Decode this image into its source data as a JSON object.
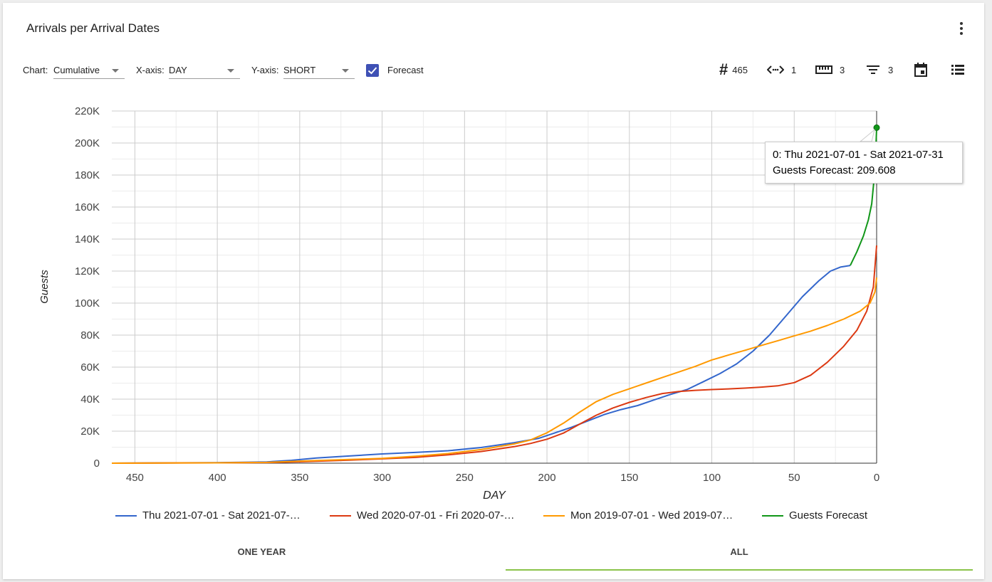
{
  "card": {
    "title": "Arrivals per Arrival Dates"
  },
  "controls": {
    "chart_label": "Chart:",
    "chart_value": "Cumulative",
    "xaxis_label": "X-axis:",
    "xaxis_value": "DAY",
    "yaxis_label": "Y-axis:",
    "yaxis_value": "SHORT",
    "forecast_label": "Forecast",
    "forecast_checked": true
  },
  "toolbar": {
    "count_value": "465",
    "range_value": "1",
    "ruler_value": "3",
    "filter_value": "3"
  },
  "tooltip": {
    "line1": "0: Thu 2021-07-01 - Sat 2021-07-31",
    "line2": "Guests Forecast: 209.608"
  },
  "tabs": [
    {
      "label": "ONE YEAR",
      "active": false
    },
    {
      "label": "ALL",
      "active": true
    }
  ],
  "chart_data": {
    "type": "line",
    "title": "",
    "xlabel": "DAY",
    "ylabel": "Guests",
    "xlim": [
      464,
      0
    ],
    "xreversed": true,
    "ylim": [
      0,
      220000
    ],
    "xticks": [
      450,
      400,
      350,
      300,
      250,
      200,
      150,
      100,
      50,
      0
    ],
    "yticks": [
      0,
      20000,
      40000,
      60000,
      80000,
      100000,
      120000,
      140000,
      160000,
      180000,
      200000,
      220000
    ],
    "ytick_labels": [
      "0",
      "20K",
      "40K",
      "60K",
      "80K",
      "100K",
      "120K",
      "140K",
      "160K",
      "180K",
      "200K",
      "220K"
    ],
    "grid": true,
    "legend_position": "bottom",
    "series": [
      {
        "name": "Thu 2021-07-01 - Sat 2021-07-…",
        "color": "#3366cc",
        "points": [
          [
            464,
            0
          ],
          [
            400,
            300
          ],
          [
            370,
            800
          ],
          [
            355,
            1800
          ],
          [
            340,
            3200
          ],
          [
            320,
            4500
          ],
          [
            300,
            5800
          ],
          [
            280,
            6700
          ],
          [
            260,
            7800
          ],
          [
            240,
            9800
          ],
          [
            220,
            12800
          ],
          [
            205,
            15500
          ],
          [
            195,
            19000
          ],
          [
            185,
            22500
          ],
          [
            175,
            26500
          ],
          [
            165,
            30500
          ],
          [
            155,
            33500
          ],
          [
            145,
            36000
          ],
          [
            135,
            39500
          ],
          [
            125,
            43000
          ],
          [
            115,
            46000
          ],
          [
            105,
            51000
          ],
          [
            95,
            56000
          ],
          [
            85,
            62000
          ],
          [
            75,
            70000
          ],
          [
            65,
            80000
          ],
          [
            55,
            92000
          ],
          [
            45,
            104000
          ],
          [
            35,
            114000
          ],
          [
            28,
            120000
          ],
          [
            22,
            122500
          ],
          [
            16,
            123500
          ]
        ]
      },
      {
        "name": "Wed 2020-07-01 - Fri 2020-07-…",
        "color": "#dc3912",
        "points": [
          [
            464,
            0
          ],
          [
            400,
            200
          ],
          [
            370,
            400
          ],
          [
            350,
            900
          ],
          [
            320,
            1900
          ],
          [
            300,
            2700
          ],
          [
            280,
            3600
          ],
          [
            260,
            5200
          ],
          [
            240,
            7300
          ],
          [
            220,
            10300
          ],
          [
            210,
            12300
          ],
          [
            200,
            15000
          ],
          [
            190,
            18800
          ],
          [
            180,
            24500
          ],
          [
            170,
            30000
          ],
          [
            160,
            34500
          ],
          [
            150,
            38000
          ],
          [
            140,
            41000
          ],
          [
            130,
            43500
          ],
          [
            120,
            44800
          ],
          [
            110,
            45500
          ],
          [
            100,
            46000
          ],
          [
            90,
            46400
          ],
          [
            80,
            46900
          ],
          [
            70,
            47500
          ],
          [
            60,
            48300
          ],
          [
            50,
            50300
          ],
          [
            40,
            55000
          ],
          [
            30,
            63000
          ],
          [
            20,
            73000
          ],
          [
            12,
            83000
          ],
          [
            6,
            95000
          ],
          [
            2,
            110000
          ],
          [
            0,
            136000
          ]
        ]
      },
      {
        "name": "Mon 2019-07-01 - Wed 2019-07…",
        "color": "#ff9900",
        "points": [
          [
            464,
            0
          ],
          [
            400,
            200
          ],
          [
            370,
            500
          ],
          [
            350,
            1300
          ],
          [
            320,
            2300
          ],
          [
            300,
            3000
          ],
          [
            280,
            4300
          ],
          [
            260,
            6000
          ],
          [
            240,
            8500
          ],
          [
            220,
            12000
          ],
          [
            210,
            14500
          ],
          [
            200,
            19000
          ],
          [
            190,
            25000
          ],
          [
            180,
            32000
          ],
          [
            170,
            38500
          ],
          [
            160,
            43000
          ],
          [
            150,
            46500
          ],
          [
            140,
            50000
          ],
          [
            130,
            53500
          ],
          [
            120,
            57000
          ],
          [
            110,
            60500
          ],
          [
            100,
            64500
          ],
          [
            90,
            67500
          ],
          [
            80,
            70500
          ],
          [
            70,
            73500
          ],
          [
            60,
            76500
          ],
          [
            50,
            79500
          ],
          [
            40,
            82500
          ],
          [
            30,
            86000
          ],
          [
            20,
            90000
          ],
          [
            10,
            95000
          ],
          [
            4,
            100000
          ],
          [
            1,
            107000
          ],
          [
            0,
            116000
          ]
        ]
      },
      {
        "name": "Guests Forecast",
        "color": "#109618",
        "points": [
          [
            16,
            123500
          ],
          [
            12,
            132000
          ],
          [
            8,
            142000
          ],
          [
            5,
            152000
          ],
          [
            3,
            162000
          ],
          [
            1.5,
            178000
          ],
          [
            0.5,
            195000
          ],
          [
            0,
            209608
          ]
        ]
      }
    ]
  }
}
